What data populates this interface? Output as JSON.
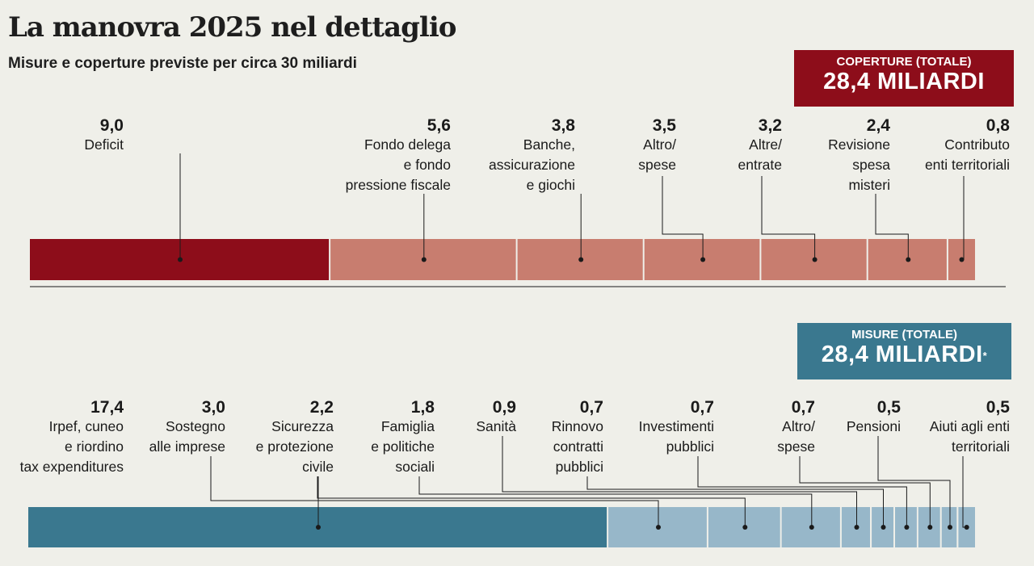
{
  "header": {
    "title": "La manovra 2025 nel dettaglio",
    "subtitle": "Misure e coperture previste per circa 30 miliardi"
  },
  "coperture_box": {
    "label": "COPERTURE (TOTALE)",
    "value": "28,4 MILIARDI",
    "color": "#8d0d1a"
  },
  "misure_box": {
    "label": "MISURE (TOTALE)",
    "value": "28,4 MILIARDI",
    "note_mark": "*",
    "color": "#3a788f"
  },
  "colors": {
    "coperture_main": "#8d0d1a",
    "coperture_rest": "#c87d6f",
    "misure_main": "#3a788f",
    "misure_rest": "#97b7c9"
  },
  "chart_data": [
    {
      "type": "bar",
      "orientation": "horizontal-stacked",
      "name": "Coperture",
      "total_label": "28,4 MILIARDI",
      "unit": "miliardi",
      "categories": [
        "Deficit",
        "Fondo delega e fondo pressione fiscale",
        "Banche, assicurazione e giochi",
        "Altro/ spese",
        "Altre/ entrate",
        "Revisione spesa misteri",
        "Contributo enti territoriali"
      ],
      "values": [
        9.0,
        5.6,
        3.8,
        3.5,
        3.2,
        2.4,
        0.8
      ],
      "value_labels": [
        "9,0",
        "5,6",
        "3,8",
        "3,5",
        "3,2",
        "2,4",
        "0,8"
      ],
      "label_lines": [
        [
          "Deficit"
        ],
        [
          "Fondo delega",
          "e fondo",
          "pressione fiscale"
        ],
        [
          "Banche,",
          "assicurazione",
          "e giochi"
        ],
        [
          "Altro/",
          "spese"
        ],
        [
          "Altre/",
          "entrate"
        ],
        [
          "Revisione",
          "spesa",
          "misteri"
        ],
        [
          "Contributo",
          "enti territoriali"
        ]
      ]
    },
    {
      "type": "bar",
      "orientation": "horizontal-stacked",
      "name": "Misure",
      "total_label": "28,4 MILIARDI",
      "unit": "miliardi",
      "categories": [
        "Irpef, cuneo e riordino tax expenditures",
        "Sostegno alle imprese",
        "Sicurezza e protezione civile",
        "Famiglia e politiche sociali",
        "Sanità",
        "Rinnovo contratti pubblici",
        "Investimenti pubblici",
        "Altro/ spese",
        "Pensioni",
        "Aiuti agli enti territoriali"
      ],
      "values": [
        17.4,
        3.0,
        2.2,
        1.8,
        0.9,
        0.7,
        0.7,
        0.7,
        0.5,
        0.5
      ],
      "value_labels": [
        "17,4",
        "3,0",
        "2,2",
        "1,8",
        "0,9",
        "0,7",
        "0,7",
        "0,7",
        "0,5",
        "0,5"
      ],
      "label_lines": [
        [
          "Irpef, cuneo",
          "e riordino",
          "tax expenditures"
        ],
        [
          "Sostegno",
          "alle imprese"
        ],
        [
          "Sicurezza",
          "e protezione",
          "civile"
        ],
        [
          "Famiglia",
          "e politiche",
          "sociali"
        ],
        [
          "Sanità"
        ],
        [
          "Rinnovo",
          "contratti",
          "pubblici"
        ],
        [
          "Investimenti",
          "pubblici"
        ],
        [
          "Altro/",
          "spese"
        ],
        [
          "Pensioni"
        ],
        [
          "Aiuti agli enti",
          "territoriali"
        ]
      ]
    }
  ]
}
